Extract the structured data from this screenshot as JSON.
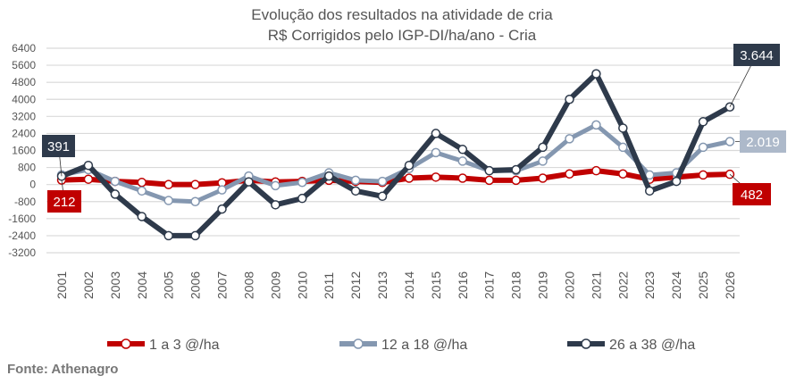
{
  "chart_data": {
    "type": "line",
    "title": "Evolução dos resultados na atividade de cria",
    "subtitle": "R$ Corrigidos pelo IGP-DI/ha/ano - Cria",
    "xlabel": "",
    "ylabel": "",
    "ylim": [
      -3200,
      6400
    ],
    "yticks": [
      "6400",
      "5600",
      "4800",
      "4000",
      "3200",
      "2400",
      "1600",
      "800",
      "0",
      "-800",
      "-1600",
      "-2400",
      "-3200"
    ],
    "ytick_values": [
      6400,
      5600,
      4800,
      4000,
      3200,
      2400,
      1600,
      800,
      0,
      -800,
      -1600,
      -2400,
      -3200
    ],
    "grid": true,
    "legend_position": "bottom",
    "categories": [
      "2001",
      "2002",
      "2003",
      "2004",
      "2005",
      "2006",
      "2007",
      "2008",
      "2009",
      "2010",
      "2011",
      "2012",
      "2013",
      "2014",
      "2015",
      "2016",
      "2017",
      "2018",
      "2019",
      "2020",
      "2021",
      "2022",
      "2023",
      "2024",
      "2025",
      "2026"
    ],
    "series": [
      {
        "name": "1 a 3 @/ha",
        "color": "#c00000",
        "values": [
          212,
          250,
          150,
          100,
          0,
          0,
          80,
          200,
          120,
          150,
          200,
          150,
          100,
          300,
          350,
          300,
          200,
          200,
          300,
          500,
          650,
          500,
          250,
          350,
          450,
          482
        ],
        "labels": [
          {
            "index": 0,
            "text": "212"
          },
          {
            "index": 25,
            "text": "482"
          }
        ]
      },
      {
        "name": "12 a 18 @/ha",
        "color": "#8497b0",
        "values": [
          450,
          700,
          150,
          -300,
          -750,
          -800,
          -250,
          400,
          -50,
          100,
          550,
          200,
          150,
          750,
          1500,
          1100,
          650,
          650,
          1100,
          2150,
          2800,
          1750,
          450,
          550,
          1750,
          2019
        ],
        "labels": [
          {
            "index": 25,
            "text": "2.019"
          }
        ]
      },
      {
        "name": "26 a 38 @/ha",
        "color": "#2e3a4b",
        "values": [
          391,
          900,
          -450,
          -1500,
          -2400,
          -2400,
          -1150,
          130,
          -950,
          -650,
          400,
          -300,
          -550,
          900,
          2400,
          1650,
          650,
          700,
          1750,
          4000,
          5200,
          2650,
          -300,
          150,
          2950,
          3644
        ],
        "labels": [
          {
            "index": 0,
            "text": "391"
          },
          {
            "index": 25,
            "text": "3.644"
          }
        ]
      }
    ]
  },
  "source": "Fonte: Athenagro"
}
